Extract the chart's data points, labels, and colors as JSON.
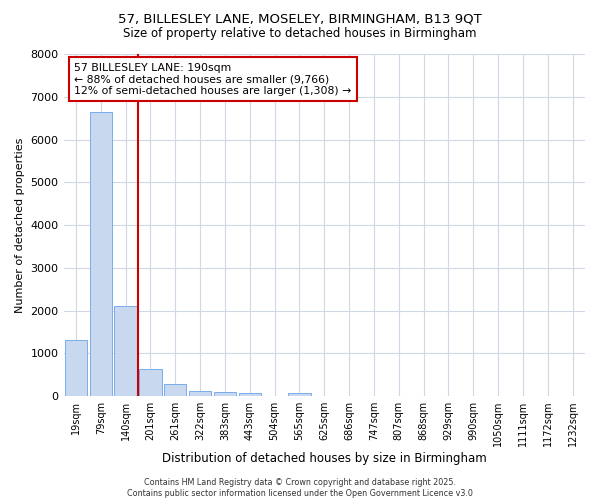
{
  "title_line1": "57, BILLESLEY LANE, MOSELEY, BIRMINGHAM, B13 9QT",
  "title_line2": "Size of property relative to detached houses in Birmingham",
  "xlabel": "Distribution of detached houses by size in Birmingham",
  "ylabel": "Number of detached properties",
  "categories": [
    "19sqm",
    "79sqm",
    "140sqm",
    "201sqm",
    "261sqm",
    "322sqm",
    "383sqm",
    "443sqm",
    "504sqm",
    "565sqm",
    "625sqm",
    "686sqm",
    "747sqm",
    "807sqm",
    "868sqm",
    "929sqm",
    "990sqm",
    "1050sqm",
    "1111sqm",
    "1172sqm",
    "1232sqm"
  ],
  "values": [
    1320,
    6640,
    2100,
    630,
    290,
    130,
    90,
    70,
    0,
    70,
    0,
    0,
    0,
    0,
    0,
    0,
    0,
    0,
    0,
    0,
    0
  ],
  "bar_color": "#c8d8ee",
  "bar_edge_color": "#7aaced",
  "vline_color": "#cc0000",
  "ylim": [
    0,
    8000
  ],
  "annotation_text": "57 BILLESLEY LANE: 190sqm\n← 88% of detached houses are smaller (9,766)\n12% of semi-detached houses are larger (1,308) →",
  "annotation_box_color": "#ffffff",
  "annotation_box_edge": "#cc0000",
  "footer_line1": "Contains HM Land Registry data © Crown copyright and database right 2025.",
  "footer_line2": "Contains public sector information licensed under the Open Government Licence v3.0",
  "background_color": "#ffffff",
  "grid_color": "#d0d8e8"
}
